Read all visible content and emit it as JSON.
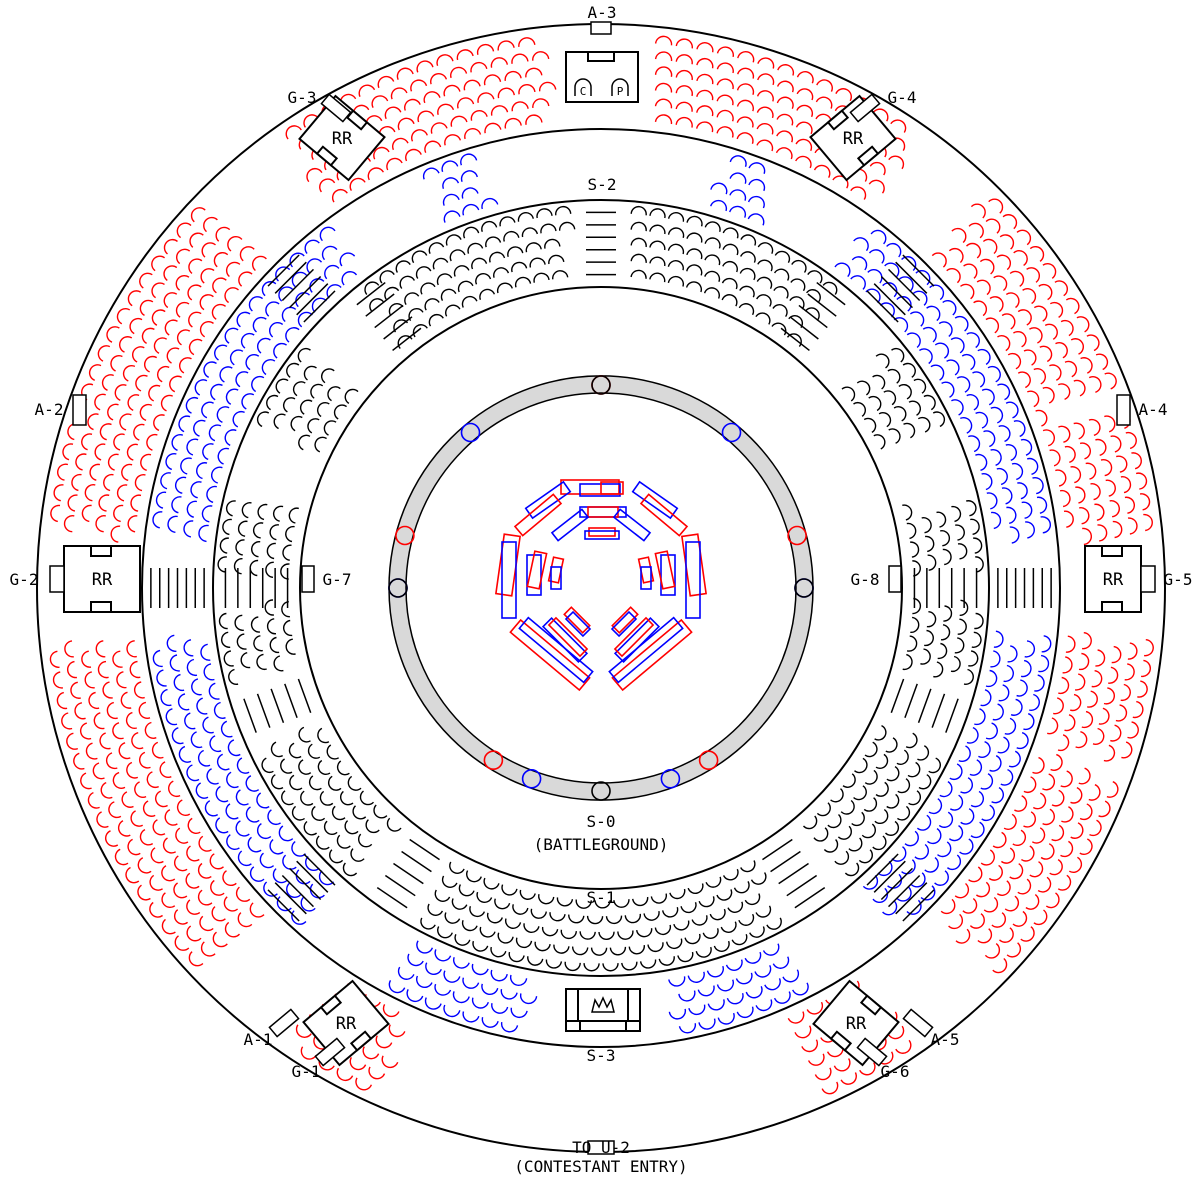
{
  "colors": {
    "line": "#000000",
    "red": "#ff0000",
    "blue": "#0000ff",
    "track": "#d9d9d9"
  },
  "labels": {
    "a1": "A-1",
    "a2": "A-2",
    "a3": "A-3",
    "a4": "A-4",
    "a5": "A-5",
    "g1": "G-1",
    "g2": "G-2",
    "g3": "G-3",
    "g4": "G-4",
    "g5": "G-5",
    "g6": "G-6",
    "g7": "G-7",
    "g8": "G-8",
    "rr": "RR",
    "s0": "S-0",
    "s0_sub": "(BATTLEGROUND)",
    "s1": "S-1",
    "s2": "S-2",
    "s3": "S-3",
    "u2": "TO U-2",
    "u2_sub": "(CONTESTANT ENTRY)",
    "box_c": "C",
    "box_p": "P"
  },
  "icons": {
    "royal_box": "crown-icon"
  }
}
